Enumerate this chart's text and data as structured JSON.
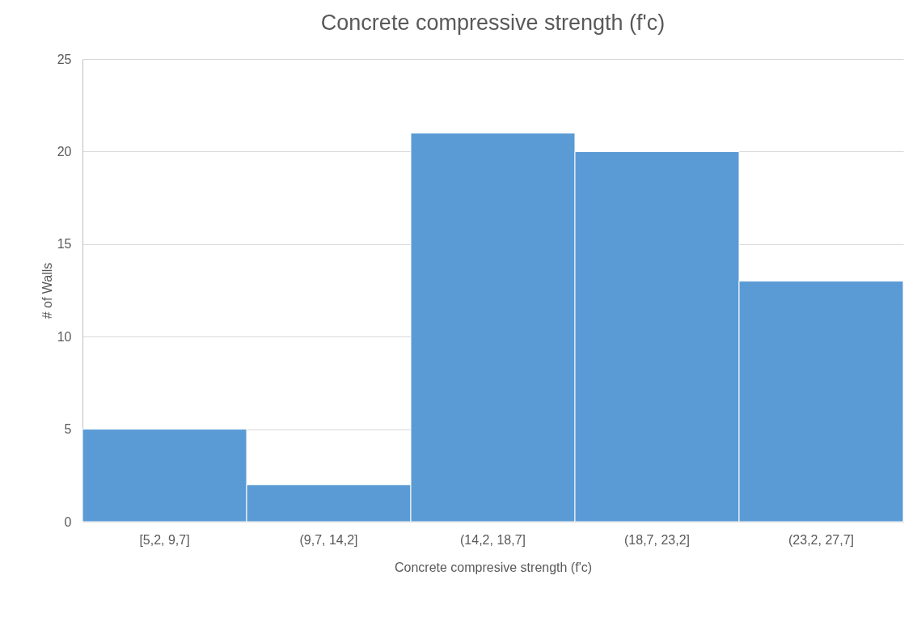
{
  "chart_data": {
    "type": "bar",
    "title": "Concrete compressive strength (f'c)",
    "xlabel": "Concrete compresive strength (f'c)",
    "ylabel": "# of Walls",
    "categories": [
      "[5,2, 9,7]",
      "(9,7, 14,2]",
      "(14,2, 18,7]",
      "(18,7, 23,2]",
      "(23,2, 27,7]"
    ],
    "values": [
      5,
      2,
      21,
      20,
      13
    ],
    "color": "#5b9bd5",
    "ylim": [
      0,
      25
    ],
    "yticks": [
      0,
      5,
      10,
      15,
      20,
      25
    ],
    "grid": "y"
  }
}
